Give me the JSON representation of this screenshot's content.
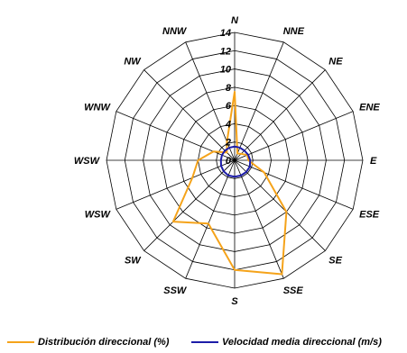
{
  "chart_data": {
    "type": "radar",
    "title": "",
    "directions": [
      "N",
      "NNE",
      "NE",
      "ENE",
      "E",
      "ESE",
      "SE",
      "SSE",
      "S",
      "SSW",
      "SW",
      "WSW",
      "WSW",
      "WNW",
      "NW",
      "NNW"
    ],
    "radial_ticks": [
      0,
      2,
      4,
      6,
      8,
      10,
      12,
      14
    ],
    "rmax": 14,
    "grid": true,
    "legend_position": "bottom",
    "series": [
      {
        "name": "Distribución direccional (%)",
        "color": "#f5a31a",
        "values": [
          7.5,
          0.8,
          1.0,
          1.5,
          1.5,
          3.5,
          8.0,
          13.5,
          12.0,
          7.5,
          9.5,
          5.0,
          4.0,
          2.5,
          1.2,
          2.2
        ]
      },
      {
        "name": "Velocidad media direccional (m/s)",
        "color": "#1c1ca8",
        "values": [
          1.5,
          1.5,
          1.5,
          1.6,
          1.7,
          1.8,
          1.8,
          1.8,
          1.8,
          1.8,
          1.7,
          1.6,
          1.5,
          1.5,
          1.5,
          1.5
        ]
      }
    ]
  }
}
